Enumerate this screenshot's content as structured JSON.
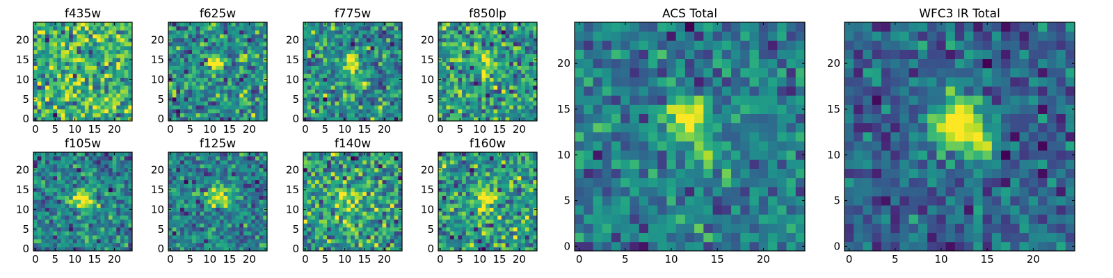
{
  "chart_data": [
    {
      "type": "heatmap",
      "title": "f435w",
      "x_ticks": [
        "0",
        "5",
        "10",
        "15",
        "20"
      ],
      "y_ticks": [
        "0",
        "5",
        "10",
        "15",
        "20"
      ],
      "grid": false,
      "colormap": "viridis",
      "noise": 1.0,
      "sources": [],
      "seed": 11
    },
    {
      "type": "heatmap",
      "title": "f625w",
      "x_ticks": [
        "0",
        "5",
        "10",
        "15",
        "20"
      ],
      "y_ticks": [
        "0",
        "5",
        "10",
        "15",
        "20"
      ],
      "grid": false,
      "colormap": "viridis",
      "noise": 0.75,
      "sources": [
        {
          "x": 11.5,
          "y": 14,
          "amp": 2.2,
          "sigma": 1.6
        }
      ],
      "seed": 23
    },
    {
      "type": "heatmap",
      "title": "f775w",
      "x_ticks": [
        "0",
        "5",
        "10",
        "15",
        "20"
      ],
      "y_ticks": [
        "0",
        "5",
        "10",
        "15",
        "20"
      ],
      "grid": false,
      "colormap": "viridis",
      "noise": 0.7,
      "sources": [
        {
          "x": 11.5,
          "y": 14,
          "amp": 2.0,
          "sigma": 1.6
        },
        {
          "x": 14,
          "y": 10,
          "amp": 1.2,
          "sigma": 1.1
        }
      ],
      "seed": 37
    },
    {
      "type": "heatmap",
      "title": "f850lp",
      "x_ticks": [
        "0",
        "5",
        "10",
        "15",
        "20"
      ],
      "y_ticks": [
        "0",
        "5",
        "10",
        "15",
        "20"
      ],
      "grid": false,
      "colormap": "viridis",
      "noise": 0.85,
      "sources": [
        {
          "x": 11.5,
          "y": 14,
          "amp": 1.5,
          "sigma": 1.7
        }
      ],
      "seed": 41
    },
    {
      "type": "heatmap",
      "title": "f105w",
      "x_ticks": [
        "0",
        "5",
        "10",
        "15",
        "20"
      ],
      "y_ticks": [
        "0",
        "5",
        "10",
        "15",
        "20"
      ],
      "grid": false,
      "colormap": "viridis",
      "noise": 0.55,
      "sources": [
        {
          "x": 12,
          "y": 12.5,
          "amp": 1.8,
          "sigma": 2.0
        },
        {
          "x": 12.5,
          "y": 4,
          "amp": 0.7,
          "sigma": 1.2
        }
      ],
      "seed": 53
    },
    {
      "type": "heatmap",
      "title": "f125w",
      "x_ticks": [
        "0",
        "5",
        "10",
        "15",
        "20"
      ],
      "y_ticks": [
        "0",
        "5",
        "10",
        "15",
        "20"
      ],
      "grid": false,
      "colormap": "viridis",
      "noise": 0.55,
      "sources": [
        {
          "x": 12.5,
          "y": 13,
          "amp": 2.0,
          "sigma": 2.0
        }
      ],
      "seed": 61
    },
    {
      "type": "heatmap",
      "title": "f140w",
      "x_ticks": [
        "0",
        "5",
        "10",
        "15",
        "20"
      ],
      "y_ticks": [
        "0",
        "5",
        "10",
        "15",
        "20"
      ],
      "grid": false,
      "colormap": "viridis",
      "noise": 0.8,
      "sources": [
        {
          "x": 12,
          "y": 13,
          "amp": 1.2,
          "sigma": 2.2
        }
      ],
      "seed": 79
    },
    {
      "type": "heatmap",
      "title": "f160w",
      "x_ticks": [
        "0",
        "5",
        "10",
        "15",
        "20"
      ],
      "y_ticks": [
        "0",
        "5",
        "10",
        "15",
        "20"
      ],
      "grid": false,
      "colormap": "viridis",
      "noise": 0.6,
      "sources": [
        {
          "x": 12,
          "y": 13,
          "amp": 1.8,
          "sigma": 2.0
        }
      ],
      "seed": 83
    },
    {
      "type": "heatmap",
      "title": "ACS Total",
      "x_ticks": [
        "0",
        "5",
        "10",
        "15",
        "20"
      ],
      "y_ticks": [
        "0",
        "5",
        "10",
        "15",
        "20"
      ],
      "grid": false,
      "colormap": "viridis",
      "noise": 0.55,
      "sources": [
        {
          "x": 11.5,
          "y": 14,
          "amp": 2.6,
          "sigma": 1.5
        },
        {
          "x": 14,
          "y": 10,
          "amp": 1.8,
          "sigma": 1.1
        }
      ],
      "seed": 97
    },
    {
      "type": "heatmap",
      "title": "WFC3 IR Total",
      "x_ticks": [
        "0",
        "5",
        "10",
        "15",
        "20"
      ],
      "y_ticks": [
        "0",
        "5",
        "10",
        "15",
        "20"
      ],
      "grid": false,
      "colormap": "viridis",
      "noise": 0.45,
      "sources": [
        {
          "x": 12,
          "y": 13.5,
          "amp": 2.5,
          "sigma": 2.0
        },
        {
          "x": 14,
          "y": 11,
          "amp": 1.2,
          "sigma": 1.3
        }
      ],
      "seed": 101
    }
  ]
}
